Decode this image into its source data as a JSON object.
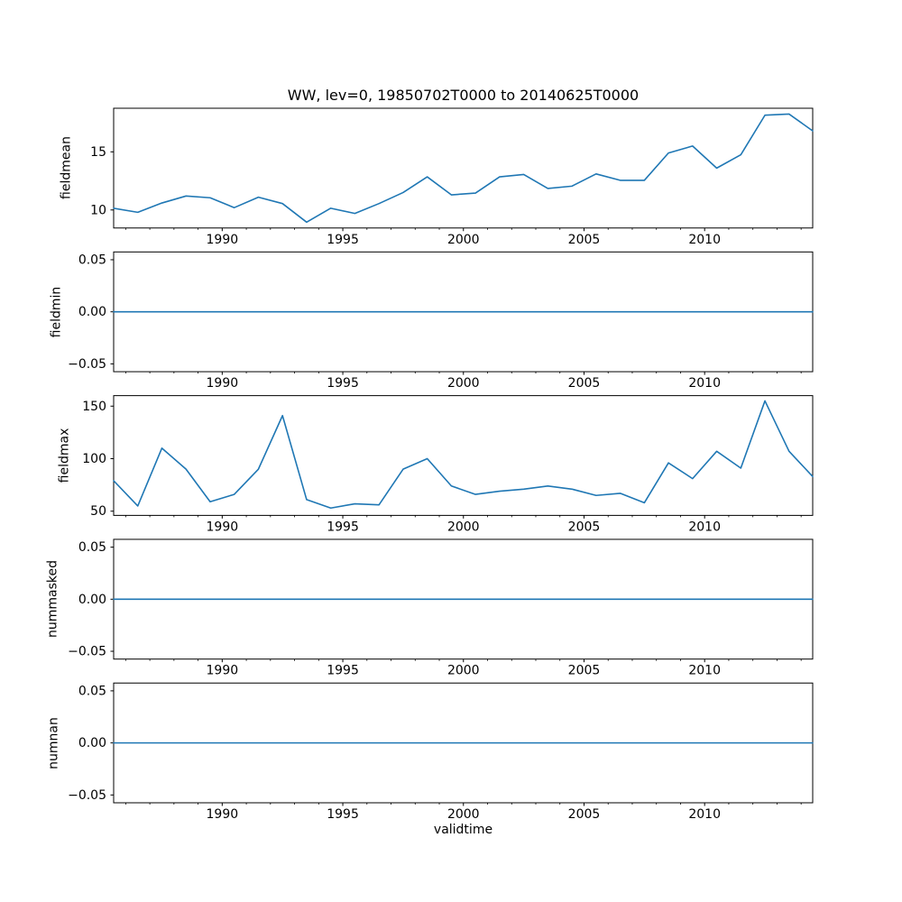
{
  "figure": {
    "title": "WW, lev=0, 19850702T0000 to 20140625T0000",
    "xlabel": "validtime"
  },
  "style": {
    "line_color": "#1f77b4",
    "axis_color": "#000000",
    "background": "#ffffff"
  },
  "x_axis": {
    "xlim": [
      1985.5,
      2014.48
    ],
    "major_ticks": [
      {
        "v": 1990,
        "label": "1990"
      },
      {
        "v": 1995,
        "label": "1995"
      },
      {
        "v": 2000,
        "label": "2000"
      },
      {
        "v": 2005,
        "label": "2005"
      },
      {
        "v": 2010,
        "label": "2010"
      }
    ],
    "minor_ticks": [
      1986,
      1987,
      1988,
      1989,
      1991,
      1992,
      1993,
      1994,
      1996,
      1997,
      1998,
      1999,
      2001,
      2002,
      2003,
      2004,
      2006,
      2007,
      2008,
      2009,
      2011,
      2012,
      2013,
      2014
    ]
  },
  "chart_data": [
    {
      "type": "line",
      "name": "fieldmean",
      "ylabel": "fieldmean",
      "ylim": [
        8.45,
        18.75
      ],
      "ytick_values": [
        10,
        15
      ],
      "ytick_labels": [
        "10",
        "15"
      ],
      "x": [
        1985.5,
        1986.5,
        1987.5,
        1988.5,
        1989.5,
        1990.5,
        1991.5,
        1992.5,
        1993.5,
        1994.5,
        1995.5,
        1996.5,
        1997.5,
        1998.5,
        1999.5,
        2000.5,
        2001.5,
        2002.5,
        2003.5,
        2004.5,
        2005.5,
        2006.5,
        2007.5,
        2008.5,
        2009.5,
        2010.5,
        2011.5,
        2012.5,
        2013.5,
        2014.48
      ],
      "values": [
        10.15,
        9.8,
        10.6,
        11.2,
        11.05,
        10.2,
        11.1,
        10.55,
        8.95,
        10.15,
        9.7,
        10.55,
        11.5,
        12.85,
        11.3,
        11.45,
        12.85,
        13.05,
        11.85,
        12.05,
        13.1,
        12.55,
        12.55,
        14.9,
        15.5,
        13.6,
        14.75,
        18.15,
        18.25,
        16.8
      ]
    },
    {
      "type": "line",
      "name": "fieldmin",
      "ylabel": "fieldmin",
      "ylim": [
        -0.0575,
        0.0575
      ],
      "ytick_values": [
        0.05,
        0.0,
        -0.05
      ],
      "ytick_labels": [
        "0.05",
        "0.00",
        "−0.05"
      ],
      "x": [
        1985.5,
        1986.5,
        1987.5,
        1988.5,
        1989.5,
        1990.5,
        1991.5,
        1992.5,
        1993.5,
        1994.5,
        1995.5,
        1996.5,
        1997.5,
        1998.5,
        1999.5,
        2000.5,
        2001.5,
        2002.5,
        2003.5,
        2004.5,
        2005.5,
        2006.5,
        2007.5,
        2008.5,
        2009.5,
        2010.5,
        2011.5,
        2012.5,
        2013.5,
        2014.48
      ],
      "values": [
        0,
        0,
        0,
        0,
        0,
        0,
        0,
        0,
        0,
        0,
        0,
        0,
        0,
        0,
        0,
        0,
        0,
        0,
        0,
        0,
        0,
        0,
        0,
        0,
        0,
        0,
        0,
        0,
        0,
        0
      ]
    },
    {
      "type": "line",
      "name": "fieldmax",
      "ylabel": "fieldmax",
      "ylim": [
        46,
        160
      ],
      "ytick_values": [
        50,
        100,
        150
      ],
      "ytick_labels": [
        "50",
        "100",
        "150"
      ],
      "x": [
        1985.5,
        1986.5,
        1987.5,
        1988.5,
        1989.5,
        1990.5,
        1991.5,
        1992.5,
        1993.5,
        1994.5,
        1995.5,
        1996.5,
        1997.5,
        1998.5,
        1999.5,
        2000.5,
        2001.5,
        2002.5,
        2003.5,
        2004.5,
        2005.5,
        2006.5,
        2007.5,
        2008.5,
        2009.5,
        2010.5,
        2011.5,
        2012.5,
        2013.5,
        2014.48
      ],
      "values": [
        79,
        55,
        110,
        90,
        59,
        66,
        90,
        141,
        61,
        53,
        57,
        56,
        90,
        100,
        74,
        66,
        69,
        71,
        74,
        71,
        65,
        67,
        58,
        96,
        81,
        107,
        91,
        155,
        107,
        83
      ]
    },
    {
      "type": "line",
      "name": "nummasked",
      "ylabel": "nummasked",
      "ylim": [
        -0.0575,
        0.0575
      ],
      "ytick_values": [
        0.05,
        0.0,
        -0.05
      ],
      "ytick_labels": [
        "0.05",
        "0.00",
        "−0.05"
      ],
      "x": [
        1985.5,
        1986.5,
        1987.5,
        1988.5,
        1989.5,
        1990.5,
        1991.5,
        1992.5,
        1993.5,
        1994.5,
        1995.5,
        1996.5,
        1997.5,
        1998.5,
        1999.5,
        2000.5,
        2001.5,
        2002.5,
        2003.5,
        2004.5,
        2005.5,
        2006.5,
        2007.5,
        2008.5,
        2009.5,
        2010.5,
        2011.5,
        2012.5,
        2013.5,
        2014.48
      ],
      "values": [
        0,
        0,
        0,
        0,
        0,
        0,
        0,
        0,
        0,
        0,
        0,
        0,
        0,
        0,
        0,
        0,
        0,
        0,
        0,
        0,
        0,
        0,
        0,
        0,
        0,
        0,
        0,
        0,
        0,
        0
      ]
    },
    {
      "type": "line",
      "name": "numnan",
      "ylabel": "numnan",
      "ylim": [
        -0.0575,
        0.0575
      ],
      "ytick_values": [
        0.05,
        0.0,
        -0.05
      ],
      "ytick_labels": [
        "0.05",
        "0.00",
        "−0.05"
      ],
      "x": [
        1985.5,
        1986.5,
        1987.5,
        1988.5,
        1989.5,
        1990.5,
        1991.5,
        1992.5,
        1993.5,
        1994.5,
        1995.5,
        1996.5,
        1997.5,
        1998.5,
        1999.5,
        2000.5,
        2001.5,
        2002.5,
        2003.5,
        2004.5,
        2005.5,
        2006.5,
        2007.5,
        2008.5,
        2009.5,
        2010.5,
        2011.5,
        2012.5,
        2013.5,
        2014.48
      ],
      "values": [
        0,
        0,
        0,
        0,
        0,
        0,
        0,
        0,
        0,
        0,
        0,
        0,
        0,
        0,
        0,
        0,
        0,
        0,
        0,
        0,
        0,
        0,
        0,
        0,
        0,
        0,
        0,
        0,
        0,
        0
      ]
    }
  ]
}
